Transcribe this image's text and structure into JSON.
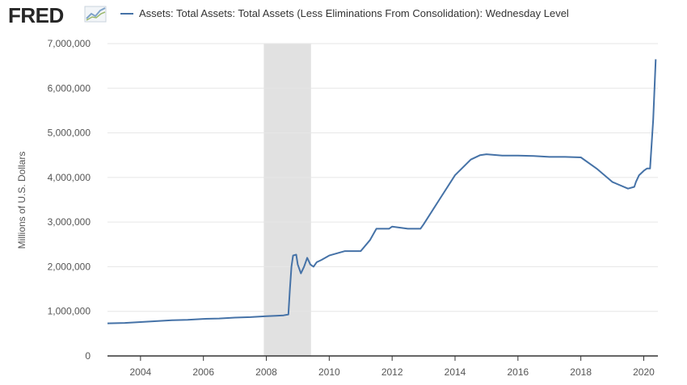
{
  "header": {
    "logo_text": "FRED",
    "legend_label": "Assets: Total Assets: Total Assets (Less Eliminations From Consolidation): Wednesday Level"
  },
  "colors": {
    "series": "#4572a7",
    "recession": "#e1e1e1",
    "grid": "#e6e6e6",
    "axis": "#333333"
  },
  "chart_data": {
    "type": "line",
    "ylabel": "Millions of U.S. Dollars",
    "xlim": [
      2002.95,
      2020.45
    ],
    "ylim": [
      0,
      7000000
    ],
    "x_ticks": [
      2004,
      2006,
      2008,
      2010,
      2012,
      2014,
      2016,
      2018,
      2020
    ],
    "y_ticks": [
      0,
      1000000,
      2000000,
      3000000,
      4000000,
      5000000,
      6000000,
      7000000
    ],
    "y_tick_labels": [
      "0",
      "1,000,000",
      "2,000,000",
      "3,000,000",
      "4,000,000",
      "5,000,000",
      "6,000,000",
      "7,000,000"
    ],
    "recession_bands": [
      [
        2007.92,
        2009.42
      ]
    ],
    "series": [
      {
        "x": [
          2002.95,
          2003.5,
          2004.0,
          2004.5,
          2005.0,
          2005.5,
          2006.0,
          2006.5,
          2007.0,
          2007.5,
          2008.0,
          2008.3,
          2008.55,
          2008.7,
          2008.75,
          2008.8,
          2008.85,
          2008.95,
          2009.0,
          2009.1,
          2009.2,
          2009.3,
          2009.4,
          2009.5,
          2009.6,
          2009.75,
          2010.0,
          2010.5,
          2011.0,
          2011.3,
          2011.5,
          2011.9,
          2012.0,
          2012.5,
          2012.9,
          2013.0,
          2013.5,
          2014.0,
          2014.5,
          2014.8,
          2015.0,
          2015.5,
          2016.0,
          2016.5,
          2017.0,
          2017.5,
          2018.0,
          2018.5,
          2019.0,
          2019.5,
          2019.7,
          2019.75,
          2019.85,
          2020.0,
          2020.1,
          2020.15,
          2020.2,
          2020.3,
          2020.38
        ],
        "y": [
          730000,
          740000,
          760000,
          780000,
          800000,
          810000,
          830000,
          840000,
          860000,
          870000,
          890000,
          900000,
          910000,
          930000,
          1500000,
          2000000,
          2250000,
          2270000,
          2050000,
          1850000,
          2000000,
          2200000,
          2050000,
          2000000,
          2100000,
          2150000,
          2250000,
          2350000,
          2350000,
          2600000,
          2850000,
          2850000,
          2900000,
          2850000,
          2850000,
          2950000,
          3500000,
          4050000,
          4400000,
          4500000,
          4520000,
          4490000,
          4490000,
          4480000,
          4460000,
          4460000,
          4450000,
          4200000,
          3900000,
          3750000,
          3790000,
          3900000,
          4050000,
          4150000,
          4200000,
          4200000,
          4200000,
          5300000,
          6650000
        ]
      }
    ]
  }
}
